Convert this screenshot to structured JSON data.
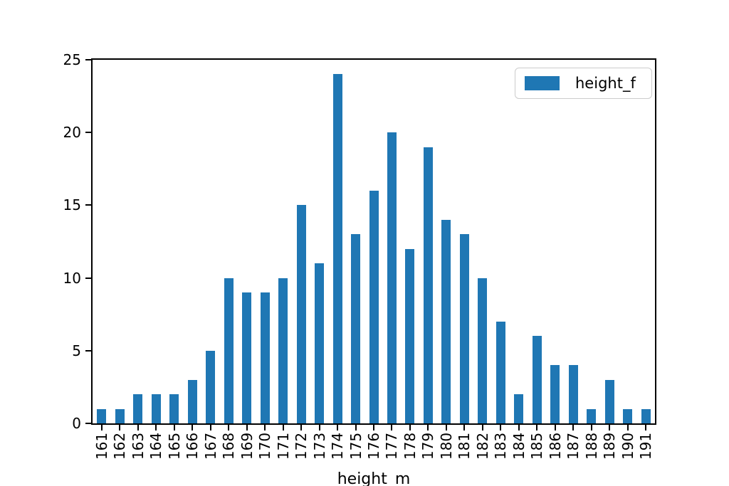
{
  "chart_data": {
    "type": "bar",
    "title": "",
    "xlabel": "height_m",
    "ylabel": "",
    "categories": [
      "161",
      "162",
      "163",
      "164",
      "165",
      "166",
      "167",
      "168",
      "169",
      "170",
      "171",
      "172",
      "173",
      "174",
      "175",
      "176",
      "177",
      "178",
      "179",
      "180",
      "181",
      "182",
      "183",
      "184",
      "185",
      "186",
      "187",
      "188",
      "189",
      "190",
      "191"
    ],
    "values": [
      1,
      1,
      2,
      2,
      2,
      3,
      5,
      10,
      9,
      9,
      10,
      15,
      11,
      24,
      13,
      16,
      20,
      12,
      19,
      14,
      13,
      10,
      7,
      2,
      6,
      4,
      4,
      1,
      3,
      1,
      1
    ],
    "ylim": [
      0,
      25
    ],
    "yticks": [
      0,
      5,
      10,
      15,
      20,
      25
    ],
    "grid": false,
    "legend": {
      "label": "height_f",
      "position": "upper right"
    },
    "bar_color": "#1f77b4",
    "axis_color": "#000000",
    "legend_border_color": "#cccccc",
    "background_color": "#ffffff"
  }
}
